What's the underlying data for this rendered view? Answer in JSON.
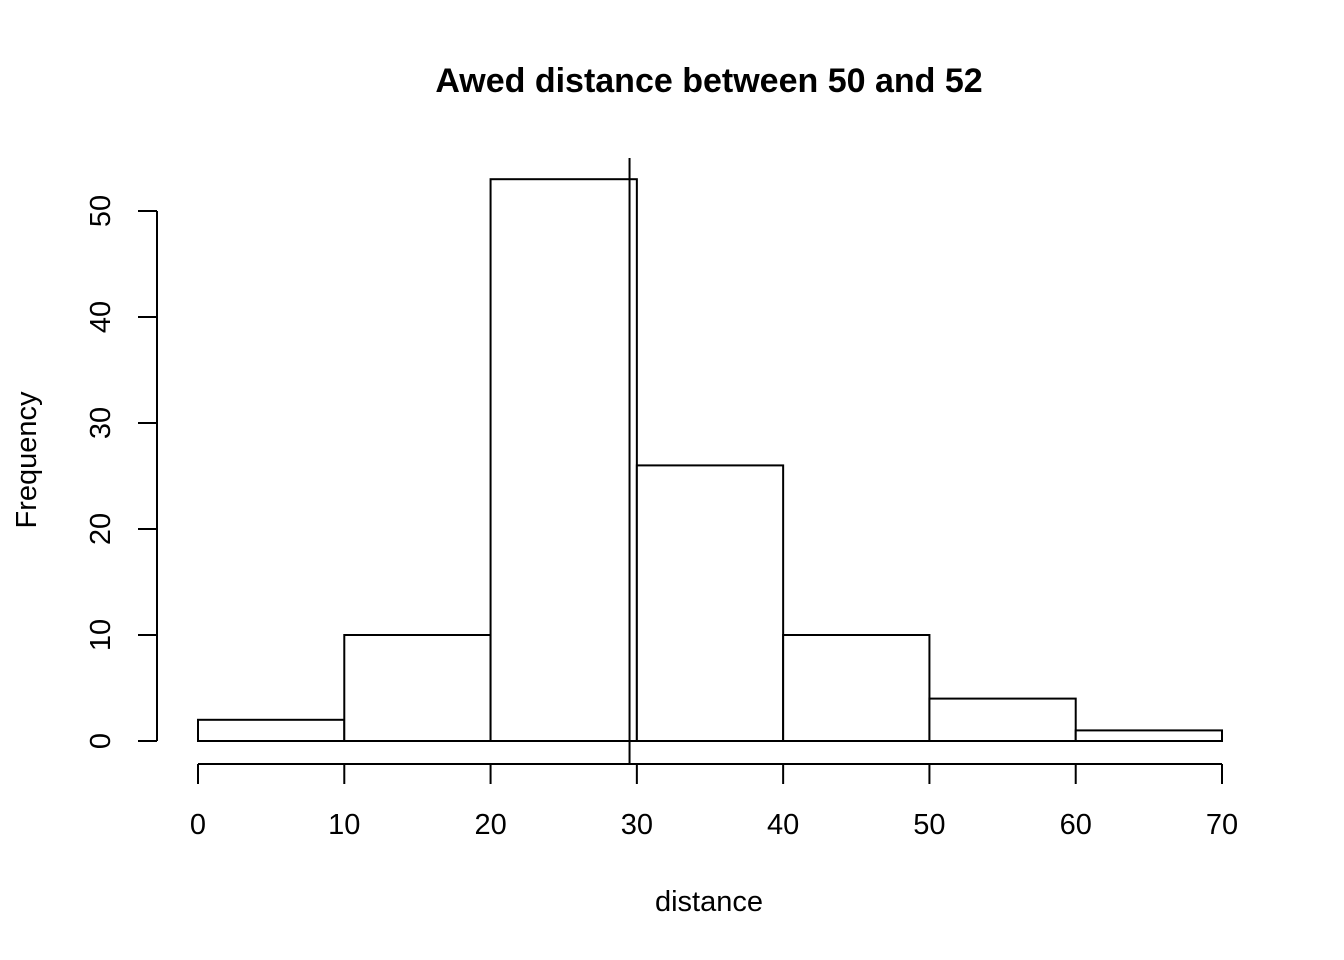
{
  "chart_data": {
    "type": "bar",
    "subtype": "histogram",
    "title": "Awed distance between 50 and 52",
    "xlabel": "distance",
    "ylabel": "Frequency",
    "bins": [
      {
        "start": 0,
        "end": 10,
        "count": 2
      },
      {
        "start": 10,
        "end": 20,
        "count": 10
      },
      {
        "start": 20,
        "end": 30,
        "count": 53
      },
      {
        "start": 30,
        "end": 40,
        "count": 26
      },
      {
        "start": 40,
        "end": 50,
        "count": 10
      },
      {
        "start": 50,
        "end": 60,
        "count": 4
      },
      {
        "start": 60,
        "end": 70,
        "count": 1
      }
    ],
    "xticks": [
      0,
      10,
      20,
      30,
      40,
      50,
      60,
      70
    ],
    "yticks": [
      0,
      10,
      20,
      30,
      40,
      50
    ],
    "xlim": [
      0,
      70
    ],
    "ylim": [
      0,
      53
    ],
    "reference_line": {
      "x": 29.5
    },
    "grid": false,
    "legend": "none",
    "colors": {
      "bar_fill": "#ffffff",
      "bar_stroke": "#000000"
    }
  }
}
